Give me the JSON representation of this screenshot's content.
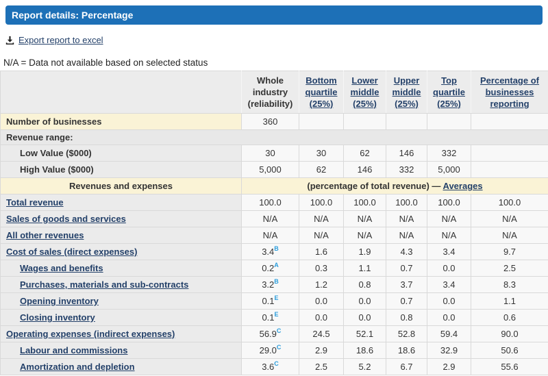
{
  "title_bar": {
    "title": "Report details: Percentage"
  },
  "export": {
    "label": "Export report to excel",
    "icon": "download-icon"
  },
  "note": {
    "text": "N/A = Data not available based on selected status"
  },
  "colors": {
    "title_bar_blue": "#1d70b7",
    "link_navy": "#234069",
    "reliability_flag_blue": "#2b9ddc",
    "highlight_cream": "#faf3d6",
    "section_gray": "#e8e8e8"
  },
  "table": {
    "columns": [
      {
        "label": "Whole industry (reliability)",
        "link": false
      },
      {
        "label": "Bottom quartile (25%)",
        "link": true
      },
      {
        "label": "Lower middle (25%)",
        "link": true
      },
      {
        "label": "Upper middle (25%)",
        "link": true
      },
      {
        "label": "Top quartile (25%)",
        "link": true
      },
      {
        "label": "Percentage of businesses reporting",
        "link": true
      }
    ],
    "rows": [
      {
        "type": "data",
        "label": "Number of businesses",
        "link": false,
        "indent": false,
        "label_bg": "cream",
        "values": [
          "360",
          "",
          "",
          "",
          "",
          ""
        ]
      },
      {
        "type": "section",
        "label": "Revenue range:"
      },
      {
        "type": "data",
        "label": "Low Value ($000)",
        "link": false,
        "indent": true,
        "values": [
          "30",
          "30",
          "62",
          "146",
          "332",
          ""
        ]
      },
      {
        "type": "data",
        "label": "High Value ($000)",
        "link": false,
        "indent": true,
        "values": [
          "5,000",
          "62",
          "146",
          "332",
          "5,000",
          ""
        ]
      },
      {
        "type": "note",
        "label": "Revenues and expenses",
        "note_text": "(percentage of total revenue) —",
        "note_link": "Averages"
      },
      {
        "type": "data",
        "label": "Total revenue",
        "link": true,
        "indent": false,
        "values": [
          "100.0",
          "100.0",
          "100.0",
          "100.0",
          "100.0",
          "100.0"
        ]
      },
      {
        "type": "data",
        "label": "Sales of goods and services",
        "link": true,
        "indent": false,
        "values": [
          "N/A",
          "N/A",
          "N/A",
          "N/A",
          "N/A",
          "N/A"
        ]
      },
      {
        "type": "data",
        "label": "All other revenues",
        "link": true,
        "indent": false,
        "values": [
          "N/A",
          "N/A",
          "N/A",
          "N/A",
          "N/A",
          "N/A"
        ]
      },
      {
        "type": "data",
        "label": "Cost of sales (direct expenses)",
        "link": true,
        "indent": false,
        "sup": "B",
        "values": [
          "3.4",
          "1.6",
          "1.9",
          "4.3",
          "3.4",
          "9.7"
        ]
      },
      {
        "type": "data",
        "label": "Wages and benefits",
        "link": true,
        "indent": true,
        "sup": "A",
        "values": [
          "0.2",
          "0.3",
          "1.1",
          "0.7",
          "0.0",
          "2.5"
        ]
      },
      {
        "type": "data",
        "label": "Purchases, materials and sub-contracts",
        "link": true,
        "indent": true,
        "sup": "B",
        "values": [
          "3.2",
          "1.2",
          "0.8",
          "3.7",
          "3.4",
          "8.3"
        ]
      },
      {
        "type": "data",
        "label": "Opening inventory",
        "link": true,
        "indent": true,
        "sup": "E",
        "values": [
          "0.1",
          "0.0",
          "0.0",
          "0.7",
          "0.0",
          "1.1"
        ]
      },
      {
        "type": "data",
        "label": "Closing inventory",
        "link": true,
        "indent": true,
        "sup": "E",
        "values": [
          "0.1",
          "0.0",
          "0.0",
          "0.8",
          "0.0",
          "0.6"
        ]
      },
      {
        "type": "data",
        "label": "Operating expenses (indirect expenses)",
        "link": true,
        "indent": false,
        "sup": "C",
        "values": [
          "56.9",
          "24.5",
          "52.1",
          "52.8",
          "59.4",
          "90.0"
        ]
      },
      {
        "type": "data",
        "label": "Labour and commissions",
        "link": true,
        "indent": true,
        "sup": "C",
        "values": [
          "29.0",
          "2.9",
          "18.6",
          "18.6",
          "32.9",
          "50.6"
        ]
      },
      {
        "type": "data",
        "label": "Amortization and depletion",
        "link": true,
        "indent": true,
        "sup": "C",
        "values": [
          "3.6",
          "2.5",
          "5.2",
          "6.7",
          "2.9",
          "55.6"
        ]
      }
    ]
  }
}
